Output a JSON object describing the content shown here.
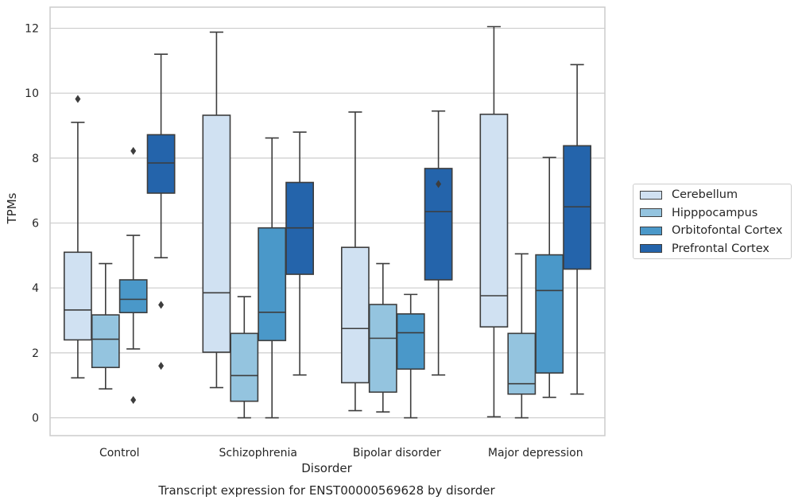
{
  "chart_data": {
    "type": "box",
    "xlabel": "Disorder",
    "ylabel": "TPMs",
    "caption": "Transcript expression for ENST00000569628 by disorder",
    "ylim": [
      -0.55,
      12.65
    ],
    "yticks": [
      "0",
      "2",
      "4",
      "6",
      "8",
      "10",
      "12"
    ],
    "grid": "horizontal",
    "legend_position": "right",
    "categories": [
      "Control",
      "Schizophrenia",
      "Bipolar disorder",
      "Major depression"
    ],
    "series": [
      {
        "name": "Cerebellum",
        "color": "#d0e1f2",
        "boxes": [
          {
            "whisker_low": 1.23,
            "q1": 2.4,
            "median": 3.32,
            "q3": 5.1,
            "whisker_high": 9.1,
            "outliers": [
              9.82
            ]
          },
          {
            "whisker_low": 0.93,
            "q1": 2.02,
            "median": 3.85,
            "q3": 9.32,
            "whisker_high": 11.88,
            "outliers": []
          },
          {
            "whisker_low": 0.22,
            "q1": 1.08,
            "median": 2.75,
            "q3": 5.25,
            "whisker_high": 9.42,
            "outliers": []
          },
          {
            "whisker_low": 0.03,
            "q1": 2.8,
            "median": 3.76,
            "q3": 9.35,
            "whisker_high": 12.05,
            "outliers": []
          }
        ]
      },
      {
        "name": "Hipppocampus",
        "color": "#94c4df",
        "boxes": [
          {
            "whisker_low": 0.89,
            "q1": 1.55,
            "median": 2.42,
            "q3": 3.17,
            "whisker_high": 4.75,
            "outliers": []
          },
          {
            "whisker_low": 0.0,
            "q1": 0.51,
            "median": 1.3,
            "q3": 2.6,
            "whisker_high": 3.73,
            "outliers": []
          },
          {
            "whisker_low": 0.18,
            "q1": 0.79,
            "median": 2.45,
            "q3": 3.49,
            "whisker_high": 4.75,
            "outliers": []
          },
          {
            "whisker_low": 0.0,
            "q1": 0.73,
            "median": 1.05,
            "q3": 2.6,
            "whisker_high": 5.05,
            "outliers": []
          }
        ]
      },
      {
        "name": "Orbitofontal Cortex",
        "color": "#4a98c9",
        "boxes": [
          {
            "whisker_low": 2.12,
            "q1": 3.24,
            "median": 3.65,
            "q3": 4.25,
            "whisker_high": 5.62,
            "outliers": [
              8.22,
              0.55
            ]
          },
          {
            "whisker_low": 0.0,
            "q1": 2.38,
            "median": 3.25,
            "q3": 5.85,
            "whisker_high": 8.62,
            "outliers": []
          },
          {
            "whisker_low": 0.0,
            "q1": 1.5,
            "median": 2.62,
            "q3": 3.2,
            "whisker_high": 3.8,
            "outliers": []
          },
          {
            "whisker_low": 0.63,
            "q1": 1.38,
            "median": 3.92,
            "q3": 5.02,
            "whisker_high": 8.02,
            "outliers": []
          }
        ]
      },
      {
        "name": "Prefrontal Cortex",
        "color": "#2464ab",
        "boxes": [
          {
            "whisker_low": 4.93,
            "q1": 6.92,
            "median": 7.85,
            "q3": 8.72,
            "whisker_high": 11.2,
            "outliers": [
              3.48,
              1.6
            ]
          },
          {
            "whisker_low": 1.32,
            "q1": 4.42,
            "median": 5.85,
            "q3": 7.25,
            "whisker_high": 8.8,
            "outliers": []
          },
          {
            "whisker_low": 1.32,
            "q1": 4.25,
            "median": 6.35,
            "q3": 7.68,
            "whisker_high": 9.45,
            "outliers": [
              7.2
            ]
          },
          {
            "whisker_low": 0.73,
            "q1": 4.58,
            "median": 6.5,
            "q3": 8.38,
            "whisker_high": 10.88,
            "outliers": []
          }
        ]
      }
    ]
  }
}
